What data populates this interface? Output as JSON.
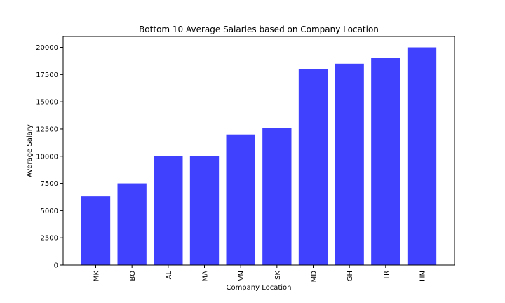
{
  "chart_data": {
    "type": "bar",
    "title": "Bottom 10 Average Salaries based on Company Location",
    "xlabel": "Company Location",
    "ylabel": "Average Salary",
    "categories": [
      "MK",
      "BO",
      "AL",
      "MA",
      "VN",
      "SK",
      "MD",
      "GH",
      "TR",
      "HN"
    ],
    "values": [
      6304,
      7500,
      10000,
      10000,
      12000,
      12608,
      18000,
      18500,
      19052,
      20000
    ],
    "ylim": [
      0,
      21000
    ],
    "yticks": [
      0,
      2500,
      5000,
      7500,
      10000,
      12500,
      15000,
      17500,
      20000
    ],
    "ytick_labels": [
      "0",
      "2500",
      "5000",
      "7500",
      "10000",
      "12500",
      "15000",
      "17500",
      "20000"
    ],
    "bar_color": "#4040ff",
    "grid": false,
    "legend": "none"
  }
}
